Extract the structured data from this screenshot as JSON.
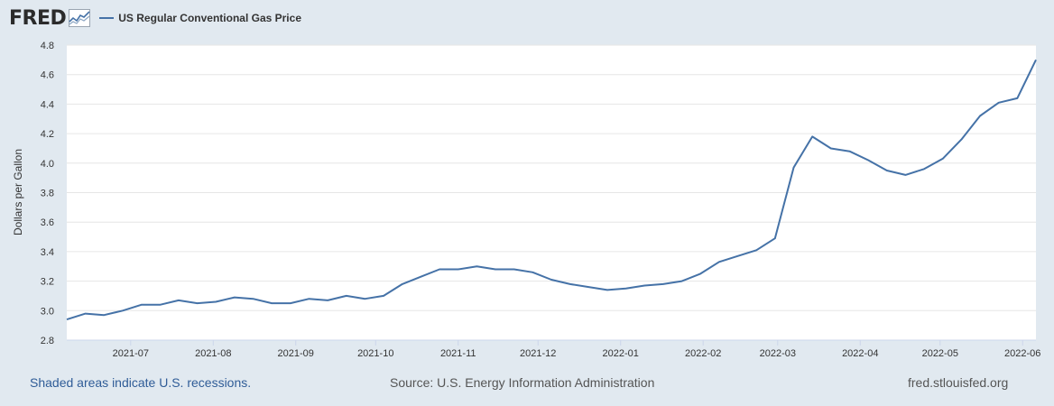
{
  "header": {
    "logo_text": "FRED",
    "logo_icon": "chart-trend-icon",
    "legend_label": "US Regular Conventional Gas Price"
  },
  "colors": {
    "series": "#4572a7",
    "plot_background": "#ffffff",
    "page_background": "#e1e9f0",
    "gridline": "#e6e6e6",
    "link": "#2f5c97"
  },
  "chart_data": {
    "type": "line",
    "title": "",
    "xlabel": "",
    "ylabel": "Dollars per Gallon",
    "ylim": [
      2.8,
      4.8
    ],
    "yticks": [
      "2.8",
      "3.0",
      "3.2",
      "3.4",
      "3.6",
      "3.8",
      "4.0",
      "4.2",
      "4.4",
      "4.6",
      "4.8"
    ],
    "xlim": [
      "2021-06-07",
      "2022-06-06"
    ],
    "xticks": [
      {
        "label": "2021-07",
        "date": "2021-07-01"
      },
      {
        "label": "2021-08",
        "date": "2021-08-01"
      },
      {
        "label": "2021-09",
        "date": "2021-09-01"
      },
      {
        "label": "2021-10",
        "date": "2021-10-01"
      },
      {
        "label": "2021-11",
        "date": "2021-11-01"
      },
      {
        "label": "2021-12",
        "date": "2021-12-01"
      },
      {
        "label": "2022-01",
        "date": "2022-01-01"
      },
      {
        "label": "2022-02",
        "date": "2022-02-01"
      },
      {
        "label": "2022-03",
        "date": "2022-03-01"
      },
      {
        "label": "2022-04",
        "date": "2022-04-01"
      },
      {
        "label": "2022-05",
        "date": "2022-05-01"
      },
      {
        "label": "2022-06",
        "date": "2022-06-01"
      }
    ],
    "grid": true,
    "legend_position": "top-left",
    "series": [
      {
        "name": "US Regular Conventional Gas Price",
        "x": [
          "2021-06-07",
          "2021-06-14",
          "2021-06-21",
          "2021-06-28",
          "2021-07-05",
          "2021-07-12",
          "2021-07-19",
          "2021-07-26",
          "2021-08-02",
          "2021-08-09",
          "2021-08-16",
          "2021-08-23",
          "2021-08-30",
          "2021-09-06",
          "2021-09-13",
          "2021-09-20",
          "2021-09-27",
          "2021-10-04",
          "2021-10-11",
          "2021-10-18",
          "2021-10-25",
          "2021-11-01",
          "2021-11-08",
          "2021-11-15",
          "2021-11-22",
          "2021-11-29",
          "2021-12-06",
          "2021-12-13",
          "2021-12-20",
          "2021-12-27",
          "2022-01-03",
          "2022-01-10",
          "2022-01-17",
          "2022-01-24",
          "2022-01-31",
          "2022-02-07",
          "2022-02-14",
          "2022-02-21",
          "2022-02-28",
          "2022-03-07",
          "2022-03-14",
          "2022-03-21",
          "2022-03-28",
          "2022-04-04",
          "2022-04-11",
          "2022-04-18",
          "2022-04-25",
          "2022-05-02",
          "2022-05-09",
          "2022-05-16",
          "2022-05-23",
          "2022-05-30",
          "2022-06-06"
        ],
        "values": [
          2.94,
          2.98,
          2.97,
          3.0,
          3.04,
          3.04,
          3.07,
          3.05,
          3.06,
          3.09,
          3.08,
          3.05,
          3.05,
          3.08,
          3.07,
          3.1,
          3.08,
          3.1,
          3.18,
          3.23,
          3.28,
          3.28,
          3.3,
          3.28,
          3.28,
          3.26,
          3.21,
          3.18,
          3.16,
          3.14,
          3.15,
          3.17,
          3.18,
          3.2,
          3.25,
          3.33,
          3.37,
          3.41,
          3.49,
          3.97,
          4.18,
          4.1,
          4.08,
          4.02,
          3.95,
          3.92,
          3.96,
          4.03,
          4.16,
          4.32,
          4.41,
          4.44,
          4.7
        ]
      }
    ]
  },
  "footer": {
    "recession_note": "Shaded areas indicate U.S. recessions.",
    "source": "Source: U.S. Energy Information Administration",
    "site": "fred.stlouisfed.org"
  }
}
